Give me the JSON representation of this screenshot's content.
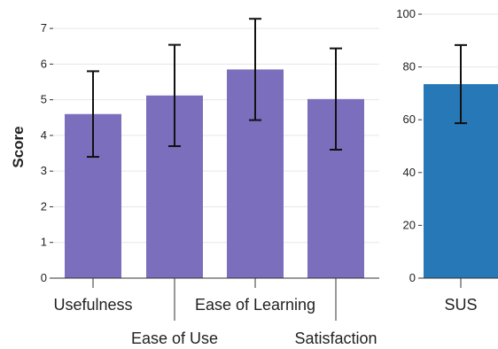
{
  "chart_data": [
    {
      "type": "bar",
      "categories": [
        "Usefulness",
        "Ease of Use",
        "Ease of Learning",
        "Satisfaction"
      ],
      "values": [
        4.6,
        5.12,
        5.85,
        5.02
      ],
      "error": [
        1.2,
        1.42,
        1.42,
        1.42
      ],
      "ylabel": "Score",
      "ylim": [
        0,
        7.3
      ],
      "yticks": [
        "0",
        "1",
        "2",
        "3",
        "4",
        "5",
        "6",
        "7"
      ],
      "grid": true,
      "color": "#7b6fbd"
    },
    {
      "type": "bar",
      "categories": [
        "SUS"
      ],
      "values": [
        73.5
      ],
      "error": [
        14.8
      ],
      "ylim": [
        0,
        100
      ],
      "yticks": [
        "0",
        "20",
        "40",
        "60",
        "80",
        "100"
      ],
      "grid": true,
      "color": "#2678b6"
    }
  ]
}
